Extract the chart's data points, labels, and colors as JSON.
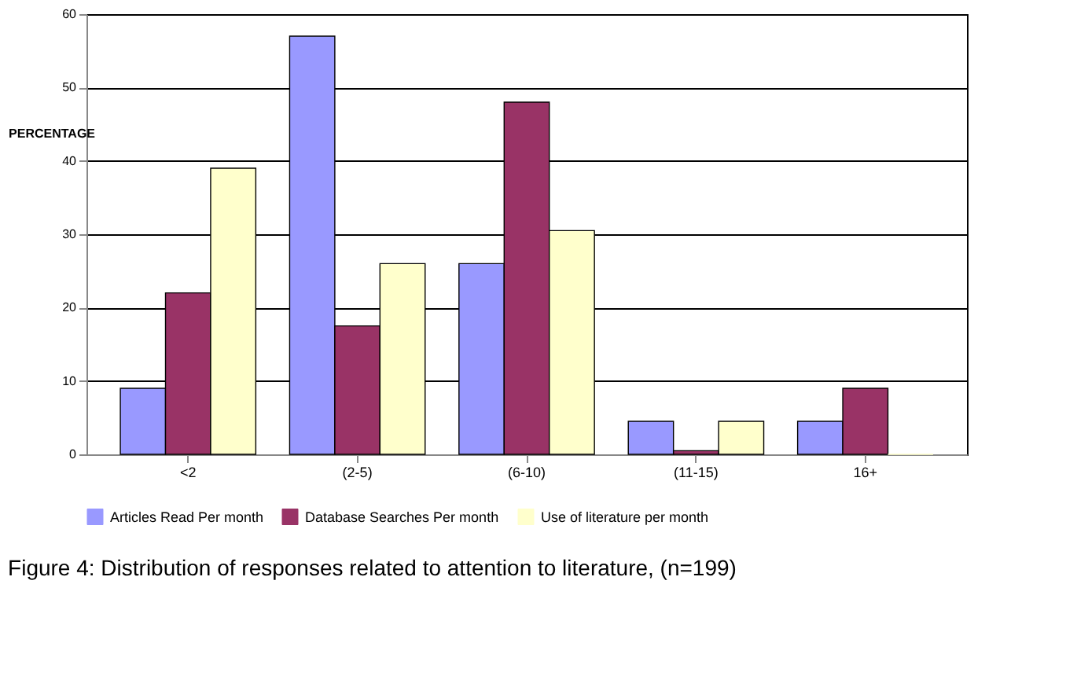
{
  "chart_data": {
    "type": "bar",
    "title": "Figure 4: Distribution of responses related to attention to literature, (n=199)",
    "ylabel": "PERCENTAGE",
    "categories": [
      "<2",
      "(2-5)",
      "(6-10)",
      "(11-15)",
      "16+"
    ],
    "series": [
      {
        "name": "Articles Read Per month",
        "color": "#9999ff",
        "values": [
          9,
          57,
          26,
          4.5,
          4.5
        ]
      },
      {
        "name": "Database Searches Per month",
        "color": "#993366",
        "values": [
          22,
          17.5,
          48,
          0.5,
          9
        ]
      },
      {
        "name": "Use of literature per month",
        "color": "#ffffcc",
        "values": [
          39,
          26,
          30.5,
          4.5,
          0
        ]
      }
    ],
    "ylim": [
      0,
      60
    ],
    "yticks": [
      0,
      10,
      20,
      30,
      40,
      50,
      60
    ],
    "grid": "y",
    "legend": "bottom"
  }
}
